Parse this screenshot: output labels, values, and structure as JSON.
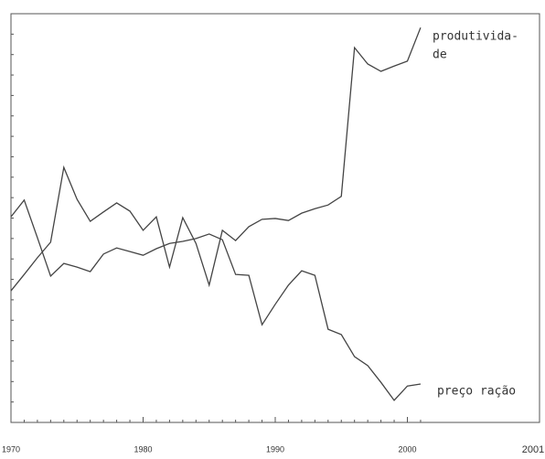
{
  "chart_data": {
    "type": "line",
    "x": [
      1970,
      1971,
      1972,
      1973,
      1974,
      1975,
      1976,
      1977,
      1978,
      1979,
      1980,
      1981,
      1982,
      1983,
      1984,
      1985,
      1986,
      1987,
      1988,
      1989,
      1990,
      1991,
      1992,
      1993,
      1994,
      1995,
      1996,
      1997,
      1998,
      1999,
      2000,
      2001
    ],
    "series": [
      {
        "color": "#444444",
        "values": [
          32.2,
          36.2,
          40.3,
          44.1,
          62.4,
          54.6,
          49.2,
          51.5,
          53.7,
          51.7,
          47.0,
          50.3,
          38.0,
          50.1,
          43.8,
          33.6,
          47.0,
          44.5,
          47.9,
          49.7,
          49.9,
          49.4,
          51.2,
          52.3,
          53.2,
          55.3,
          91.7,
          87.7,
          85.9,
          87.2,
          88.4,
          96.6
        ]
      },
      {
        "color": "#444444",
        "values": [
          50.3,
          54.4,
          45.2,
          35.8,
          38.9,
          38.0,
          36.9,
          41.2,
          42.7,
          41.8,
          40.9,
          42.5,
          43.8,
          44.3,
          45.0,
          46.1,
          44.7,
          36.2,
          36.0,
          23.9,
          28.9,
          33.6,
          37.1,
          36.0,
          22.8,
          21.5,
          16.1,
          13.9,
          9.8,
          5.4,
          8.9,
          9.4
        ]
      }
    ],
    "annotations": [
      {
        "lines": [
          "produtivida-",
          "de"
        ]
      },
      {
        "lines": [
          "preço ração"
        ]
      }
    ],
    "xlim": [
      1970,
      2010
    ],
    "ylim": [
      0,
      100
    ],
    "xticks": [
      1970,
      1980,
      1990,
      2000
    ],
    "x_end_label": "2001"
  }
}
